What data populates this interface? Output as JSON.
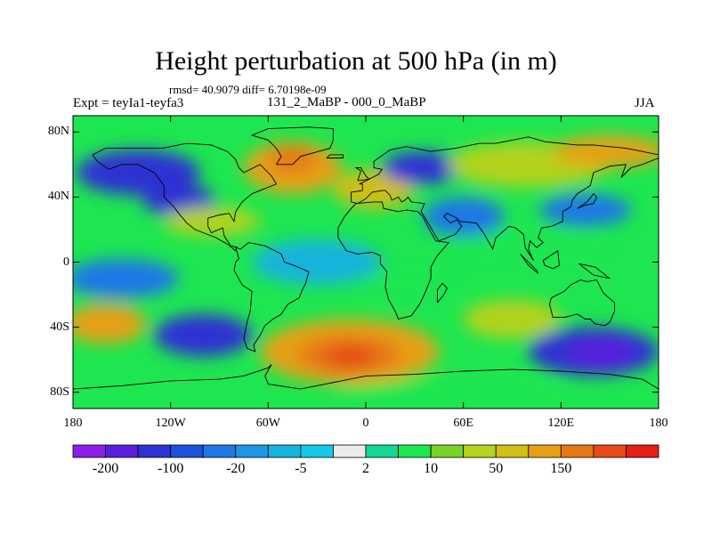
{
  "title": "Height perturbation at 500 hPa (in m)",
  "stats": "rmsd= 40.9079 diff= 6.70198e-09",
  "left_label": "Expt = teyIa1-teyfa3",
  "center_label": "131_2_MaBP - 000_0_MaBP",
  "right_label": "JJA",
  "lat_ticks": [
    "80N",
    "40N",
    "0",
    "40S",
    "80S"
  ],
  "lat_tick_values": [
    80,
    40,
    0,
    -40,
    -80
  ],
  "lon_ticks": [
    "180",
    "120W",
    "60W",
    "0",
    "60E",
    "120E",
    "180"
  ],
  "lon_tick_values": [
    -180,
    -120,
    -60,
    0,
    60,
    120,
    180
  ],
  "lat_range": [
    -90,
    90
  ],
  "lon_range": [
    -180,
    180
  ],
  "colorbar": {
    "colors": [
      "#8c1ee6",
      "#5a1edc",
      "#2d32d2",
      "#1e50dc",
      "#1e78e6",
      "#1e96e6",
      "#14b4dc",
      "#14c8e6",
      "#ebebeb",
      "#14d796",
      "#1ee650",
      "#78d228",
      "#b4d21e",
      "#d2be14",
      "#e6a014",
      "#e67814",
      "#e64b14",
      "#e61e14"
    ],
    "labels": [
      "-200",
      "-100",
      "-20",
      "-5",
      "2",
      "10",
      "50",
      "150"
    ]
  },
  "field_blobs": [
    {
      "lon": -140,
      "lat": 55,
      "rx": 38,
      "ry": 14,
      "color": "#2d32d2"
    },
    {
      "lon": -115,
      "lat": 38,
      "rx": 22,
      "ry": 10,
      "color": "#2d32d2"
    },
    {
      "lon": -45,
      "lat": 58,
      "rx": 30,
      "ry": 16,
      "color": "#e6a014"
    },
    {
      "lon": -45,
      "lat": 63,
      "rx": 15,
      "ry": 8,
      "color": "#e67814"
    },
    {
      "lon": 5,
      "lat": 45,
      "rx": 25,
      "ry": 12,
      "color": "#d2be14"
    },
    {
      "lon": 35,
      "lat": 58,
      "rx": 25,
      "ry": 10,
      "color": "#2d32d2"
    },
    {
      "lon": 100,
      "lat": 60,
      "rx": 50,
      "ry": 14,
      "color": "#b4d21e"
    },
    {
      "lon": 150,
      "lat": 68,
      "rx": 35,
      "ry": 10,
      "color": "#e6a014"
    },
    {
      "lon": 135,
      "lat": 32,
      "rx": 28,
      "ry": 10,
      "color": "#1e78e6"
    },
    {
      "lon": -95,
      "lat": 25,
      "rx": 30,
      "ry": 9,
      "color": "#b4d21e"
    },
    {
      "lon": 60,
      "lat": 28,
      "rx": 25,
      "ry": 12,
      "color": "#1e78e6"
    },
    {
      "lon": 100,
      "lat": 10,
      "rx": 50,
      "ry": 8,
      "color": "#1ee650"
    },
    {
      "lon": -150,
      "lat": -10,
      "rx": 35,
      "ry": 12,
      "color": "#1e78e6"
    },
    {
      "lon": -30,
      "lat": 0,
      "rx": 40,
      "ry": 14,
      "color": "#14b4dc"
    },
    {
      "lon": 30,
      "lat": -15,
      "rx": 30,
      "ry": 10,
      "color": "#1ee650"
    },
    {
      "lon": -160,
      "lat": -38,
      "rx": 25,
      "ry": 12,
      "color": "#e6a014"
    },
    {
      "lon": -100,
      "lat": -45,
      "rx": 30,
      "ry": 13,
      "color": "#2d32d2"
    },
    {
      "lon": -10,
      "lat": -55,
      "rx": 55,
      "ry": 20,
      "color": "#e6a014"
    },
    {
      "lon": -10,
      "lat": -57,
      "rx": 32,
      "ry": 12,
      "color": "#e67814"
    },
    {
      "lon": -10,
      "lat": -58,
      "rx": 16,
      "ry": 7,
      "color": "#e64b14"
    },
    {
      "lon": 90,
      "lat": -35,
      "rx": 30,
      "ry": 12,
      "color": "#b4d21e"
    },
    {
      "lon": 140,
      "lat": -55,
      "rx": 40,
      "ry": 15,
      "color": "#2d32d2"
    },
    {
      "lon": 145,
      "lat": -56,
      "rx": 20,
      "ry": 8,
      "color": "#5a1edc"
    },
    {
      "lon": 50,
      "lat": -80,
      "rx": 70,
      "ry": 8,
      "color": "#1ee650"
    }
  ],
  "coastlines": [
    [
      [
        -168,
        66
      ],
      [
        -160,
        70
      ],
      [
        -140,
        70
      ],
      [
        -125,
        70
      ],
      [
        -110,
        73
      ],
      [
        -95,
        72
      ],
      [
        -85,
        68
      ],
      [
        -80,
        63
      ],
      [
        -78,
        58
      ],
      [
        -75,
        55
      ],
      [
        -65,
        60
      ],
      [
        -58,
        53
      ],
      [
        -55,
        48
      ],
      [
        -65,
        44
      ],
      [
        -70,
        42
      ],
      [
        -76,
        37
      ],
      [
        -80,
        31
      ],
      [
        -81,
        25
      ],
      [
        -84,
        30
      ],
      [
        -90,
        29
      ],
      [
        -97,
        27
      ],
      [
        -97,
        22
      ],
      [
        -95,
        18
      ],
      [
        -88,
        21
      ],
      [
        -87,
        16
      ],
      [
        -83,
        10
      ],
      [
        -79,
        9
      ],
      [
        -80,
        7
      ],
      [
        -85,
        11
      ],
      [
        -92,
        15
      ],
      [
        -105,
        20
      ],
      [
        -110,
        24
      ],
      [
        -115,
        30
      ],
      [
        -118,
        34
      ],
      [
        -124,
        40
      ],
      [
        -124,
        47
      ],
      [
        -130,
        55
      ],
      [
        -140,
        60
      ],
      [
        -150,
        60
      ],
      [
        -158,
        57
      ],
      [
        -165,
        62
      ],
      [
        -168,
        66
      ]
    ],
    [
      [
        -80,
        9
      ],
      [
        -77,
        8
      ],
      [
        -72,
        12
      ],
      [
        -62,
        10
      ],
      [
        -52,
        5
      ],
      [
        -50,
        0
      ],
      [
        -44,
        -2
      ],
      [
        -35,
        -6
      ],
      [
        -37,
        -13
      ],
      [
        -39,
        -17
      ],
      [
        -41,
        -22
      ],
      [
        -48,
        -26
      ],
      [
        -52,
        -32
      ],
      [
        -57,
        -35
      ],
      [
        -62,
        -39
      ],
      [
        -65,
        -45
      ],
      [
        -69,
        -51
      ],
      [
        -68,
        -55
      ],
      [
        -73,
        -53
      ],
      [
        -75,
        -47
      ],
      [
        -73,
        -37
      ],
      [
        -71,
        -30
      ],
      [
        -70,
        -18
      ],
      [
        -76,
        -14
      ],
      [
        -81,
        -5
      ],
      [
        -80,
        0
      ],
      [
        -78,
        2
      ],
      [
        -80,
        9
      ]
    ],
    [
      [
        -17,
        15
      ],
      [
        -17,
        21
      ],
      [
        -13,
        28
      ],
      [
        -9,
        33
      ],
      [
        -6,
        36
      ],
      [
        5,
        37
      ],
      [
        10,
        37
      ],
      [
        11,
        33
      ],
      [
        20,
        31
      ],
      [
        25,
        32
      ],
      [
        32,
        31
      ],
      [
        35,
        28
      ],
      [
        38,
        22
      ],
      [
        43,
        13
      ],
      [
        51,
        12
      ],
      [
        44,
        4
      ],
      [
        40,
        -3
      ],
      [
        40,
        -10
      ],
      [
        36,
        -20
      ],
      [
        33,
        -26
      ],
      [
        28,
        -33
      ],
      [
        20,
        -35
      ],
      [
        18,
        -30
      ],
      [
        14,
        -23
      ],
      [
        12,
        -15
      ],
      [
        13,
        -6
      ],
      [
        9,
        -1
      ],
      [
        9,
        4
      ],
      [
        4,
        6
      ],
      [
        -5,
        5
      ],
      [
        -12,
        7
      ],
      [
        -17,
        15
      ]
    ],
    [
      [
        -9,
        37
      ],
      [
        -9,
        43
      ],
      [
        -2,
        44
      ],
      [
        -2,
        48
      ],
      [
        -4,
        48
      ],
      [
        2,
        51
      ],
      [
        8,
        54
      ],
      [
        10,
        57
      ],
      [
        5,
        58
      ],
      [
        5,
        62
      ],
      [
        15,
        69
      ],
      [
        25,
        71
      ],
      [
        40,
        68
      ],
      [
        55,
        70
      ],
      [
        70,
        73
      ],
      [
        80,
        73
      ],
      [
        100,
        77
      ],
      [
        110,
        74
      ],
      [
        130,
        72
      ],
      [
        140,
        72
      ],
      [
        160,
        70
      ],
      [
        170,
        68
      ],
      [
        180,
        66
      ],
      [
        180,
        64
      ],
      [
        170,
        60
      ],
      [
        163,
        58
      ],
      [
        157,
        52
      ],
      [
        160,
        60
      ],
      [
        150,
        59
      ],
      [
        140,
        55
      ],
      [
        138,
        47
      ],
      [
        130,
        42
      ],
      [
        127,
        38
      ],
      [
        126,
        34
      ],
      [
        121,
        31
      ],
      [
        121,
        25
      ],
      [
        114,
        22
      ],
      [
        108,
        21
      ],
      [
        106,
        15
      ],
      [
        109,
        12
      ],
      [
        105,
        9
      ],
      [
        101,
        13
      ],
      [
        100,
        8
      ],
      [
        103,
        1
      ],
      [
        98,
        9
      ],
      [
        97,
        17
      ],
      [
        92,
        21
      ],
      [
        88,
        22
      ],
      [
        80,
        15
      ],
      [
        78,
        8
      ],
      [
        73,
        17
      ],
      [
        68,
        24
      ],
      [
        58,
        25
      ],
      [
        56,
        27
      ],
      [
        50,
        30
      ],
      [
        48,
        28
      ],
      [
        52,
        24
      ],
      [
        56,
        26
      ],
      [
        59,
        22
      ],
      [
        55,
        17
      ],
      [
        45,
        13
      ],
      [
        43,
        16
      ],
      [
        36,
        28
      ],
      [
        34,
        31
      ],
      [
        36,
        36
      ],
      [
        28,
        37
      ],
      [
        26,
        40
      ],
      [
        24,
        38
      ],
      [
        22,
        37
      ],
      [
        20,
        40
      ],
      [
        16,
        38
      ],
      [
        15,
        41
      ],
      [
        12,
        44
      ],
      [
        10,
        44
      ],
      [
        4,
        43
      ],
      [
        3,
        42
      ],
      [
        0,
        39
      ],
      [
        -5,
        36
      ],
      [
        -9,
        37
      ]
    ],
    [
      [
        114,
        -22
      ],
      [
        113,
        -26
      ],
      [
        115,
        -34
      ],
      [
        122,
        -34
      ],
      [
        130,
        -32
      ],
      [
        135,
        -35
      ],
      [
        138,
        -35
      ],
      [
        141,
        -38
      ],
      [
        147,
        -39
      ],
      [
        150,
        -37
      ],
      [
        153,
        -30
      ],
      [
        153,
        -25
      ],
      [
        146,
        -19
      ],
      [
        142,
        -11
      ],
      [
        136,
        -12
      ],
      [
        132,
        -11
      ],
      [
        126,
        -14
      ],
      [
        122,
        -18
      ],
      [
        114,
        -22
      ]
    ],
    [
      [
        -55,
        60
      ],
      [
        -45,
        60
      ],
      [
        -40,
        65
      ],
      [
        -22,
        70
      ],
      [
        -20,
        75
      ],
      [
        -20,
        82
      ],
      [
        -35,
        83
      ],
      [
        -60,
        82
      ],
      [
        -70,
        78
      ],
      [
        -60,
        75
      ],
      [
        -55,
        70
      ],
      [
        -52,
        65
      ],
      [
        -55,
        60
      ]
    ],
    [
      [
        -180,
        -78
      ],
      [
        -150,
        -76
      ],
      [
        -120,
        -73
      ],
      [
        -90,
        -72
      ],
      [
        -75,
        -70
      ],
      [
        -60,
        -65
      ],
      [
        -58,
        -63
      ],
      [
        -62,
        -70
      ],
      [
        -60,
        -75
      ],
      [
        -40,
        -78
      ],
      [
        0,
        -70
      ],
      [
        30,
        -69
      ],
      [
        60,
        -67
      ],
      [
        90,
        -66
      ],
      [
        120,
        -67
      ],
      [
        150,
        -69
      ],
      [
        170,
        -72
      ],
      [
        180,
        -78
      ]
    ],
    [
      [
        95,
        5
      ],
      [
        105,
        -5
      ],
      [
        106,
        -7
      ],
      [
        100,
        -2
      ],
      [
        95,
        5
      ]
    ],
    [
      [
        109,
        1
      ],
      [
        118,
        7
      ],
      [
        119,
        -2
      ],
      [
        115,
        -4
      ],
      [
        110,
        -2
      ],
      [
        109,
        1
      ]
    ],
    [
      [
        131,
        -1
      ],
      [
        141,
        -3
      ],
      [
        150,
        -10
      ],
      [
        140,
        -8
      ],
      [
        131,
        -1
      ]
    ],
    [
      [
        130,
        33
      ],
      [
        135,
        35
      ],
      [
        140,
        36
      ],
      [
        142,
        40
      ],
      [
        140,
        42
      ],
      [
        136,
        37
      ],
      [
        130,
        33
      ]
    ],
    [
      [
        -5,
        50
      ],
      [
        -3,
        56
      ],
      [
        -6,
        58
      ],
      [
        -3,
        58
      ],
      [
        0,
        53
      ],
      [
        2,
        51
      ],
      [
        -5,
        50
      ]
    ],
    [
      [
        44,
        -25
      ],
      [
        48,
        -20
      ],
      [
        50,
        -16
      ],
      [
        47,
        -13
      ],
      [
        44,
        -17
      ],
      [
        44,
        -25
      ]
    ],
    [
      [
        -24,
        64
      ],
      [
        -14,
        64
      ],
      [
        -14,
        66
      ],
      [
        -22,
        66
      ],
      [
        -24,
        64
      ]
    ]
  ]
}
